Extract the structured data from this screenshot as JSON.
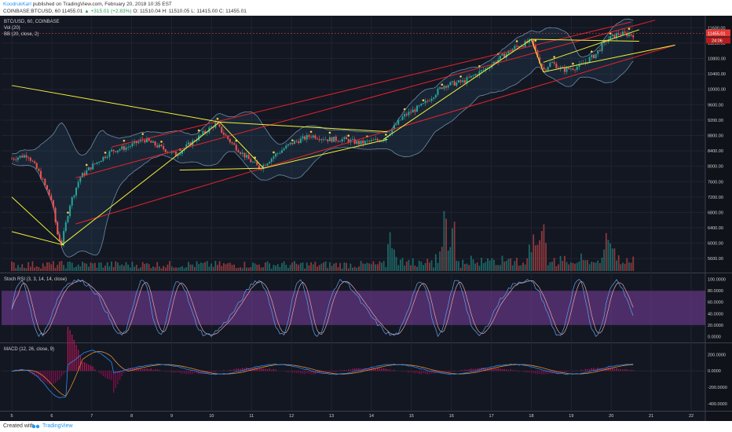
{
  "header": {
    "author": "KoodrukKarl",
    "published": "published on TradingView.com, February 20, 2018 10:35 EST",
    "symbol": "COINBASE:BTCUSD, 60",
    "last": "11455.01",
    "change": "+315.01 (+2.83%)",
    "ohlc": {
      "o": "O: 11510.04",
      "h": "H: 11510.05",
      "l": "L: 11415.00",
      "c": "C: 11455.01"
    }
  },
  "footer": {
    "created": "Created with",
    "brand": "TradingView"
  },
  "colors": {
    "background": "#131722",
    "up": "#26a69a",
    "down": "#ef5350",
    "channel": "#e8232d",
    "trend": "#f2f23a",
    "bb": "#6b8ba8",
    "rsi_band": "#7b3fa0",
    "macd": "#2a8af0",
    "signal": "#e08d36"
  },
  "panes": {
    "price_labels": [
      "BTC/USD, 60, COINBASE",
      "Vol (20)",
      "BB (20, close, 2)"
    ],
    "rsi_label": "Stoch RSI (3, 3, 14, 14, close)",
    "macd_label": "MACD (12, 26, close, 9)"
  },
  "chart_data": [
    {
      "type": "candlestick",
      "title": "BTC/USD, 60, COINBASE",
      "x_ticks": [
        "5",
        "6",
        "7",
        "8",
        "9",
        "10",
        "11",
        "12",
        "13",
        "14",
        "15",
        "16",
        "17",
        "18",
        "19",
        "20",
        "21",
        "22"
      ],
      "y_ticks": [
        "11600.00",
        "11200.00",
        "10800.00",
        "10400.00",
        "10000.00",
        "9600.00",
        "9200.00",
        "8800.00",
        "8400.00",
        "8000.00",
        "7600.00",
        "7200.00",
        "6800.00",
        "6400.00",
        "6000.00",
        "5600.00"
      ],
      "ylim": [
        5400,
        11750
      ],
      "price_path": [
        [
          5.0,
          8200
        ],
        [
          5.4,
          8300
        ],
        [
          5.7,
          7800
        ],
        [
          6.0,
          7100
        ],
        [
          6.15,
          6200
        ],
        [
          6.25,
          6000
        ],
        [
          6.45,
          7000
        ],
        [
          6.7,
          7700
        ],
        [
          7.0,
          8000
        ],
        [
          7.5,
          8400
        ],
        [
          7.9,
          8500
        ],
        [
          8.3,
          8700
        ],
        [
          8.7,
          8500
        ],
        [
          9.1,
          8300
        ],
        [
          9.6,
          8700
        ],
        [
          10.1,
          9100
        ],
        [
          10.5,
          8600
        ],
        [
          10.9,
          8200
        ],
        [
          11.2,
          7950
        ],
        [
          11.6,
          8300
        ],
        [
          12.0,
          8600
        ],
        [
          12.5,
          8800
        ],
        [
          12.9,
          8700
        ],
        [
          13.3,
          8700
        ],
        [
          13.7,
          8600
        ],
        [
          14.3,
          8700
        ],
        [
          14.8,
          9300
        ],
        [
          15.3,
          9600
        ],
        [
          15.8,
          10100
        ],
        [
          16.3,
          10200
        ],
        [
          16.8,
          10500
        ],
        [
          17.2,
          10800
        ],
        [
          17.6,
          11100
        ],
        [
          18.0,
          11250
        ],
        [
          18.3,
          10500
        ],
        [
          18.5,
          10700
        ],
        [
          18.8,
          10500
        ],
        [
          19.2,
          10600
        ],
        [
          19.6,
          10900
        ],
        [
          19.9,
          11300
        ],
        [
          20.2,
          11450
        ],
        [
          20.5,
          11420
        ]
      ],
      "last": "11455.01",
      "last_label_2": "24:06",
      "volume": [
        5600,
        5750
      ],
      "annotations": [
        "Red ascending channel",
        "Yellow trend lines"
      ]
    },
    {
      "type": "line",
      "title": "Stoch RSI (3, 3, 14, 14, close)",
      "y_ticks": [
        "100.0000",
        "80.0000",
        "60.0000",
        "40.0000",
        "20.0000",
        "0.0000"
      ],
      "ylim": [
        -5,
        105
      ],
      "bands": [
        20,
        80
      ]
    },
    {
      "type": "line",
      "title": "MACD (12, 26, close, 9)",
      "y_ticks": [
        "200.0000",
        "0.0000",
        "-200.0000",
        "-400.0000"
      ],
      "ylim": [
        -450,
        300
      ]
    }
  ]
}
